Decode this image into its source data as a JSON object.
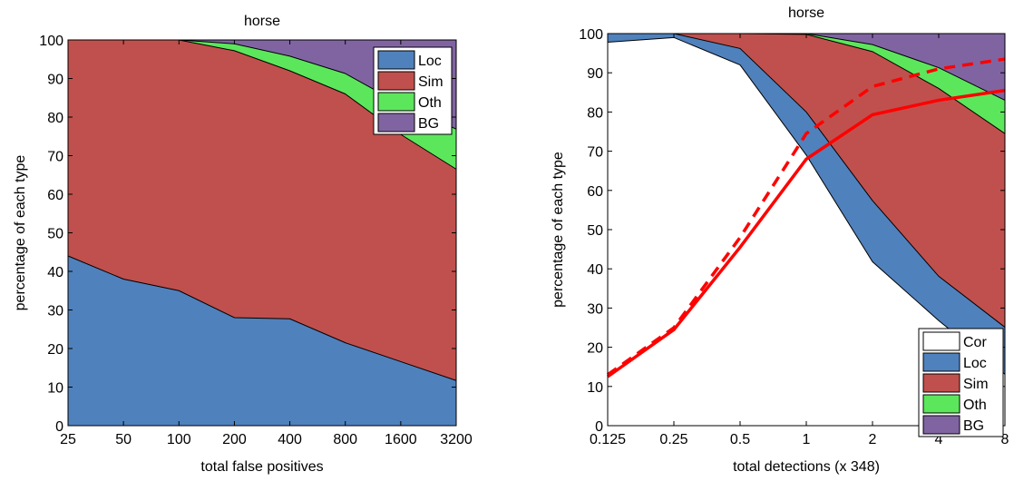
{
  "colors": {
    "loc": "#4f81bd",
    "sim": "#c0504d",
    "oth": "#5ce65c",
    "bg": "#8064a2",
    "cor": "#ffffff",
    "recall": "#ff0000"
  },
  "chart_data": [
    {
      "type": "area",
      "title": "horse",
      "xlabel": "total false positives",
      "ylabel": "percentage of each type",
      "x_ticks": [
        "25",
        "50",
        "100",
        "200",
        "400",
        "800",
        "1600",
        "3200"
      ],
      "y_ticks": [
        "0",
        "10",
        "20",
        "30",
        "40",
        "50",
        "60",
        "70",
        "80",
        "90",
        "100"
      ],
      "ylim": [
        0,
        100
      ],
      "legend_placement": "top-right",
      "series": [
        {
          "name": "Loc",
          "color_key": "loc",
          "values": [
            44,
            38,
            35,
            28,
            27.7,
            21.5,
            16.6,
            11.7
          ]
        },
        {
          "name": "Sim",
          "color_key": "sim",
          "values": [
            56,
            62,
            65,
            69.2,
            64.3,
            64.5,
            58.9,
            54.8
          ]
        },
        {
          "name": "Oth",
          "color_key": "oth",
          "values": [
            0,
            0,
            0,
            1.8,
            3.8,
            5.3,
            7.8,
            10.4
          ]
        },
        {
          "name": "BG",
          "color_key": "bg",
          "values": [
            0,
            0,
            0,
            1.0,
            4.2,
            8.7,
            16.7,
            23.1
          ]
        }
      ]
    },
    {
      "type": "area",
      "title": "horse",
      "xlabel": "total detections (x 348)",
      "ylabel": "percentage of each type",
      "x_ticks": [
        "0.125",
        "0.25",
        "0.5",
        "1",
        "2",
        "4",
        "8"
      ],
      "y_ticks": [
        "0",
        "10",
        "20",
        "30",
        "40",
        "50",
        "60",
        "70",
        "80",
        "90",
        "100"
      ],
      "ylim": [
        0,
        100
      ],
      "legend_placement": "bottom-right",
      "series": [
        {
          "name": "Cor",
          "color_key": "cor",
          "values": [
            97.8,
            99.0,
            92,
            69,
            41.8,
            26.8,
            13.1
          ]
        },
        {
          "name": "Loc",
          "color_key": "loc",
          "values": [
            2.2,
            1.0,
            4.2,
            11.0,
            15.6,
            11.3,
            12.0
          ]
        },
        {
          "name": "Sim",
          "color_key": "sim",
          "values": [
            0,
            0,
            3.8,
            19.8,
            38.0,
            47.9,
            49.4
          ]
        },
        {
          "name": "Oth",
          "color_key": "oth",
          "values": [
            0,
            0,
            0,
            0.2,
            1.8,
            5.3,
            8.5
          ]
        },
        {
          "name": "BG",
          "color_key": "bg",
          "values": [
            0,
            0,
            0,
            0,
            2.8,
            8.7,
            17.0
          ]
        }
      ],
      "lines": [
        {
          "style": "solid",
          "color_key": "recall",
          "values": [
            12.5,
            24.5,
            45.5,
            68.0,
            79.3,
            83.0,
            85.5
          ]
        },
        {
          "style": "dashed",
          "color_key": "recall",
          "values": [
            13,
            25,
            48,
            74.5,
            86.5,
            91.0,
            93.5
          ]
        }
      ]
    }
  ]
}
